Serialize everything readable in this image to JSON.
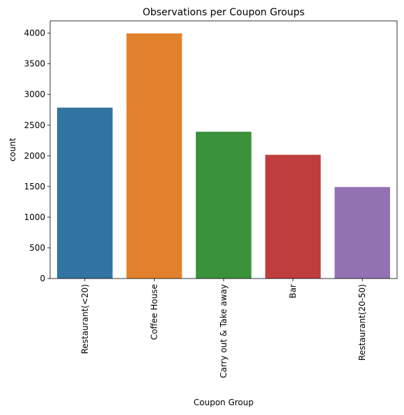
{
  "chart_data": {
    "type": "bar",
    "title": "Observations per Coupon Groups",
    "xlabel": "Coupon Group",
    "ylabel": "count",
    "categories": [
      "Restaurant(<20)",
      "Coffee House",
      "Carry out & Take away",
      "Bar",
      "Restaurant(20-50)"
    ],
    "values": [
      2786,
      3996,
      2393,
      2017,
      1492
    ],
    "colors": [
      "#3274a1",
      "#e1812c",
      "#3a923a",
      "#c03d3e",
      "#9372b2"
    ],
    "ylim": [
      0,
      4200
    ],
    "yticks": [
      0,
      500,
      1000,
      1500,
      2000,
      2500,
      3000,
      3500,
      4000
    ],
    "grid": false,
    "legend": "none"
  }
}
